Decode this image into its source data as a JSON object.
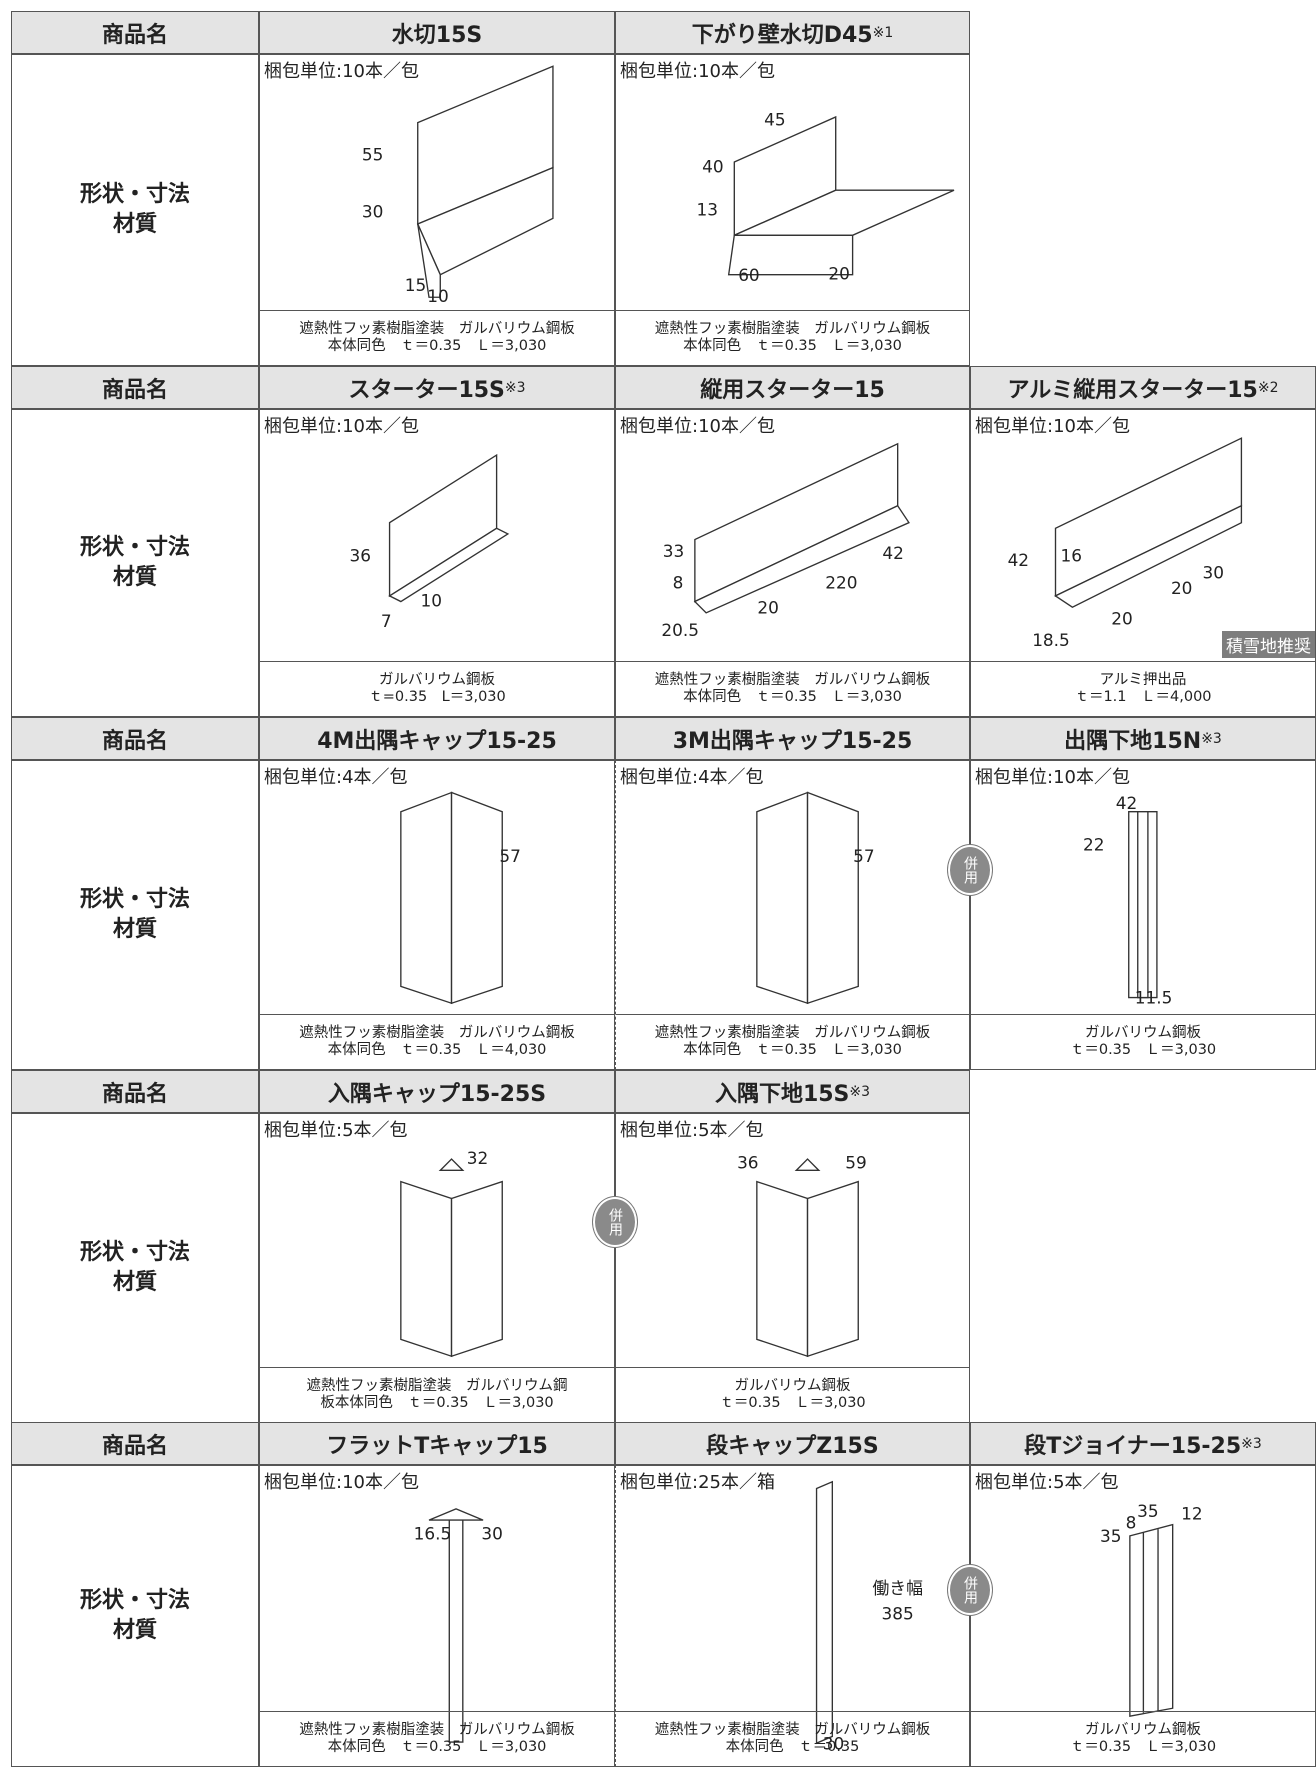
{
  "sections": [
    {
      "header_label": "商品名",
      "body_label": [
        "形状・寸法",
        "材質"
      ],
      "products": [
        {
          "name": "水切15S",
          "packaging": "梱包単位:10本／包",
          "dims": [
            "55",
            "30",
            "15",
            "10"
          ],
          "material": [
            "遮熱性フッ素樹脂塗装　ガルバリウム鋼板",
            "本体同色　ｔ＝0.35　Ｌ＝3,030"
          ]
        },
        {
          "name": "下がり壁水切D45",
          "note": "※1",
          "packaging": "梱包単位:10本／包",
          "dims": [
            "45",
            "40",
            "13",
            "60",
            "20"
          ],
          "material": [
            "遮熱性フッ素樹脂塗装　ガルバリウム鋼板",
            "本体同色　ｔ＝0.35　Ｌ＝3,030"
          ]
        }
      ]
    },
    {
      "header_label": "商品名",
      "body_label": [
        "形状・寸法",
        "材質"
      ],
      "products": [
        {
          "name": "スターター15S",
          "note": "※3",
          "packaging": "梱包単位:10本／包",
          "dims": [
            "36",
            "10",
            "7"
          ],
          "material": [
            "ガルバリウム鋼板",
            "ｔ=0.35　L＝3,030"
          ]
        },
        {
          "name": "縦用スターター15",
          "packaging": "梱包単位:10本／包",
          "dims": [
            "33",
            "8",
            "42",
            "220",
            "20",
            "20.5"
          ],
          "material": [
            "遮熱性フッ素樹脂塗装　ガルバリウム鋼板",
            "本体同色　ｔ＝0.35　Ｌ＝3,030"
          ]
        },
        {
          "name": "アルミ縦用スターター15",
          "note": "※2",
          "packaging": "梱包単位:10本／包",
          "dims": [
            "42",
            "16",
            "30",
            "20",
            "20",
            "18.5"
          ],
          "badge": "積雪地推奨",
          "material": [
            "アルミ押出品",
            "ｔ＝1.1　Ｌ＝4,000"
          ]
        }
      ]
    },
    {
      "header_label": "商品名",
      "body_label": [
        "形状・寸法",
        "材質"
      ],
      "combined": "併用",
      "products": [
        {
          "name": "4M出隅キャップ15-25",
          "packaging": "梱包単位:4本／包",
          "dims": [
            "57"
          ],
          "material": [
            "遮熱性フッ素樹脂塗装　ガルバリウム鋼板",
            "本体同色　ｔ＝0.35　Ｌ＝4,030"
          ]
        },
        {
          "name": "3M出隅キャップ15-25",
          "packaging": "梱包単位:4本／包",
          "dims": [
            "57"
          ],
          "material": [
            "遮熱性フッ素樹脂塗装　ガルバリウム鋼板",
            "本体同色　ｔ＝0.35　Ｌ＝3,030"
          ]
        },
        {
          "name": "出隅下地15N",
          "note": "※3",
          "packaging": "梱包単位:10本／包",
          "dims": [
            "42",
            "22",
            "11.5"
          ],
          "material": [
            "ガルバリウム鋼板",
            "ｔ＝0.35　Ｌ＝3,030"
          ]
        }
      ]
    },
    {
      "header_label": "商品名",
      "body_label": [
        "形状・寸法",
        "材質"
      ],
      "combined": "併用",
      "products": [
        {
          "name": "入隅キャップ15-25S",
          "packaging": "梱包単位:5本／包",
          "dims": [
            "32"
          ],
          "material": [
            "遮熱性フッ素樹脂塗装　ガルバリウム鋼",
            "板本体同色　ｔ＝0.35　Ｌ＝3,030"
          ]
        },
        {
          "name": "入隅下地15S",
          "note": "※3",
          "packaging": "梱包単位:5本／包",
          "dims": [
            "36",
            "59"
          ],
          "material": [
            "ガルバリウム鋼板",
            "ｔ＝0.35　Ｌ＝3,030"
          ]
        }
      ]
    },
    {
      "header_label": "商品名",
      "body_label": [
        "形状・寸法",
        "材質"
      ],
      "combined": "併用",
      "products": [
        {
          "name": "フラットTキャップ15",
          "packaging": "梱包単位:10本／包",
          "dims": [
            "16.5",
            "30"
          ],
          "material": [
            "遮熱性フッ素樹脂塗装　ガルバリウム鋼板",
            "本体同色　ｔ＝0.35　Ｌ＝3,030"
          ]
        },
        {
          "name": "段キャップZ15S",
          "packaging": "梱包単位:25本／箱",
          "dims": [
            "働き幅",
            "385",
            "30"
          ],
          "material": [
            "遮熱性フッ素樹脂塗装　ガルバリウム鋼板",
            "本体同色　ｔ＝0.35"
          ]
        },
        {
          "name": "段Tジョイナー15-25",
          "note": "※3",
          "packaging": "梱包単位:5本／包",
          "dims": [
            "35",
            "8",
            "35",
            "12"
          ],
          "material": [
            "ガルバリウム鋼板",
            "ｔ＝0.35　Ｌ＝3,030"
          ]
        }
      ]
    }
  ]
}
